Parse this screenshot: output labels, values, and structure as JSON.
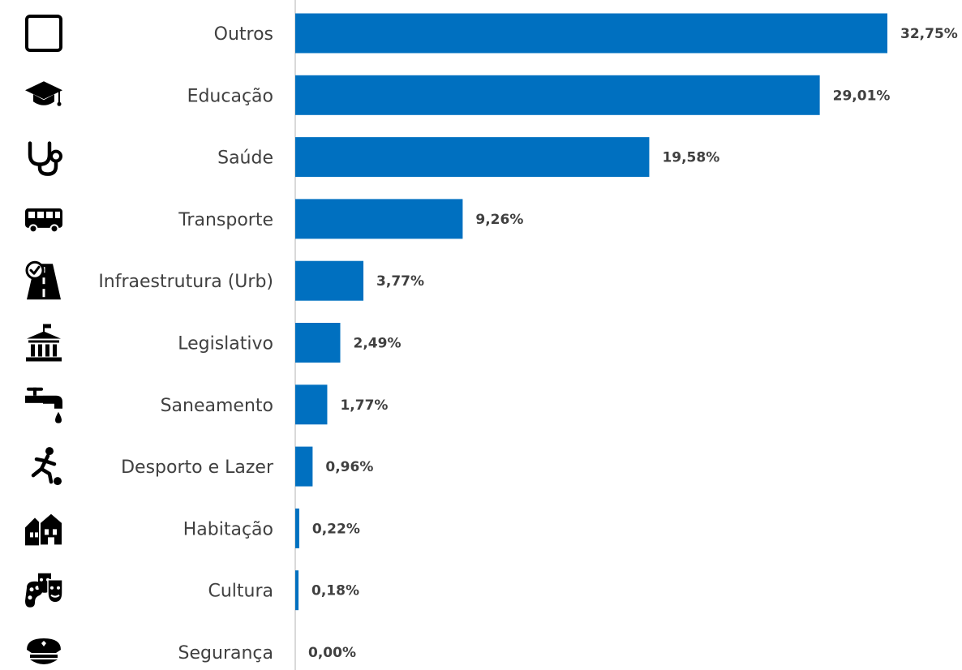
{
  "chart_data": {
    "type": "bar",
    "orientation": "horizontal",
    "categories": [
      "Outros",
      "Educação",
      "Saúde",
      "Transporte",
      "Infraestrutura (Urb)",
      "Legislativo",
      "Saneamento",
      "Desporto e Lazer",
      "Habitação",
      "Cultura",
      "Segurança"
    ],
    "values": [
      32.75,
      29.01,
      19.58,
      9.26,
      3.77,
      2.49,
      1.77,
      0.96,
      0.22,
      0.18,
      0.0
    ],
    "value_labels": [
      "32,75%",
      "29,01%",
      "19,58%",
      "9,26%",
      "3,77%",
      "2,49%",
      "1,77%",
      "0,96%",
      "0,22%",
      "0,18%",
      "0,00%"
    ],
    "icons": [
      "square-outline-icon",
      "graduation-cap-icon",
      "stethoscope-icon",
      "bus-icon",
      "road-icon",
      "government-building-icon",
      "water-tap-icon",
      "soccer-player-icon",
      "houses-icon",
      "theater-masks-palette-icon",
      "police-cap-icon"
    ],
    "title": "",
    "xlabel": "",
    "ylabel": "",
    "xlim": [
      0,
      32.75
    ],
    "grid": false,
    "legend": "none",
    "bar_color": "#0070C0",
    "text_color": "#404040",
    "axis_color": "#D9D9D9"
  }
}
